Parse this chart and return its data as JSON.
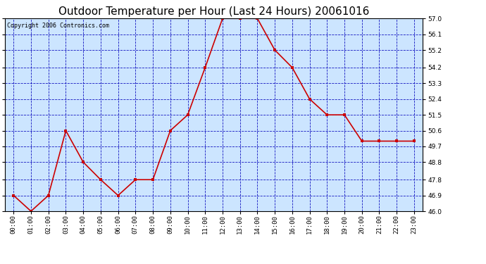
{
  "title": "Outdoor Temperature per Hour (Last 24 Hours) 20061016",
  "copyright_text": "Copyright 2006 Contronics.com",
  "hours": [
    "00:00",
    "01:00",
    "02:00",
    "03:00",
    "04:00",
    "05:00",
    "06:00",
    "07:00",
    "08:00",
    "09:00",
    "10:00",
    "11:00",
    "12:00",
    "13:00",
    "14:00",
    "15:00",
    "16:00",
    "17:00",
    "18:00",
    "19:00",
    "20:00",
    "21:00",
    "22:00",
    "23:00"
  ],
  "temps": [
    46.9,
    46.0,
    46.9,
    50.6,
    48.8,
    47.8,
    46.9,
    47.8,
    47.8,
    50.6,
    51.5,
    54.2,
    57.0,
    57.0,
    57.0,
    55.2,
    54.2,
    52.4,
    51.5,
    51.5,
    50.0,
    50.0,
    50.0,
    50.0
  ],
  "ylim": [
    46.0,
    57.0
  ],
  "yticks": [
    46.0,
    46.9,
    47.8,
    48.8,
    49.7,
    50.6,
    51.5,
    52.4,
    53.3,
    54.2,
    55.2,
    56.1,
    57.0
  ],
  "line_color": "#cc0000",
  "marker_color": "#cc0000",
  "plot_bg_color": "#cce5ff",
  "grid_color": "#0000bb",
  "title_fontsize": 11,
  "tick_fontsize": 6.5,
  "copyright_fontsize": 6
}
